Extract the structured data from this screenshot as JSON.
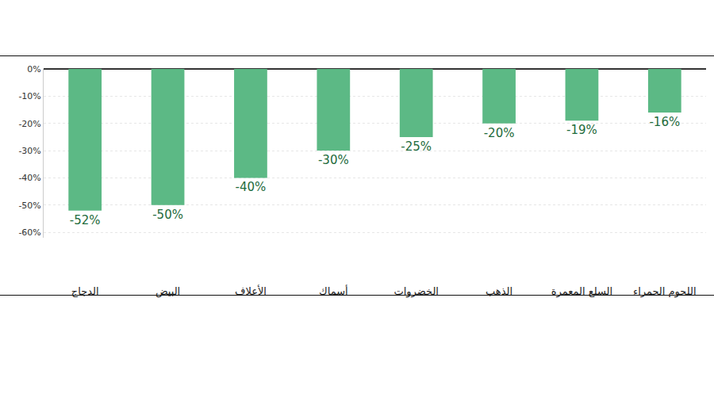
{
  "chart_data": {
    "type": "bar",
    "categories": [
      "الدجاج",
      "البيض",
      "الأعلاف",
      "أسماك",
      "الخضروات",
      "الذهب",
      "السلع المعمرة",
      "اللحوم الحمراء"
    ],
    "values": [
      -52,
      -50,
      -40,
      -30,
      -25,
      -20,
      -19,
      -16
    ],
    "value_labels": [
      "-52%",
      "-50%",
      "-40%",
      "-30%",
      "-25%",
      "-20%",
      "-19%",
      "-16%"
    ],
    "color": "#5cb985",
    "ylim": [
      -62,
      0
    ],
    "yticks": [
      {
        "value": 0,
        "label": "0%"
      },
      {
        "value": -10,
        "label": "-10%"
      },
      {
        "value": -20,
        "label": "-20%"
      },
      {
        "value": -30,
        "label": "-30%"
      },
      {
        "value": -40,
        "label": "-40%"
      },
      {
        "value": -50,
        "label": "-50%"
      },
      {
        "value": -60,
        "label": "-60%"
      }
    ],
    "grid": true,
    "data_labels": true
  }
}
